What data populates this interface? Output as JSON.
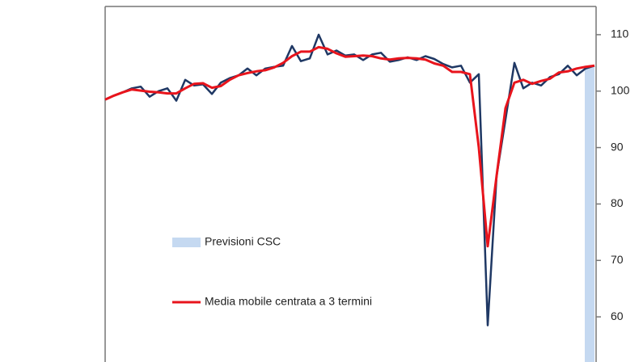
{
  "chart_data": {
    "type": "line",
    "categories": [
      null,
      null,
      null,
      null,
      null,
      null,
      null,
      null,
      null,
      null,
      null,
      null,
      null,
      null,
      null,
      null,
      null,
      null,
      null,
      null,
      null,
      null,
      null,
      null,
      null,
      null,
      null,
      null,
      null,
      null,
      null,
      null,
      null,
      null,
      null,
      null,
      null,
      null,
      null,
      null,
      null,
      null,
      null,
      null,
      null,
      null,
      null,
      null,
      null,
      null,
      null,
      null,
      null,
      null,
      null,
      null
    ],
    "series": [
      {
        "color": "#c5d9f1",
        "kind": "bar",
        "name": "Previsioni CSC",
        "values": [
          null,
          null,
          null,
          null,
          null,
          null,
          null,
          null,
          null,
          null,
          null,
          null,
          null,
          null,
          null,
          null,
          null,
          null,
          null,
          null,
          null,
          null,
          null,
          null,
          null,
          null,
          null,
          null,
          null,
          null,
          null,
          null,
          null,
          null,
          null,
          null,
          null,
          null,
          null,
          null,
          null,
          null,
          null,
          null,
          null,
          null,
          null,
          null,
          null,
          null,
          null,
          null,
          null,
          null,
          null,
          104.5
        ]
      },
      {
        "color": "#1f3864",
        "kind": "line",
        "values": [
          98.5,
          99.2,
          99.8,
          100.5,
          100.8,
          99.0,
          100,
          100.5,
          98.3,
          102,
          101,
          101.2,
          99.5,
          101.5,
          102.3,
          102.8,
          104,
          102.8,
          104,
          104.3,
          104.5,
          108,
          105.3,
          105.8,
          110,
          106.5,
          107.2,
          106.3,
          106.5,
          105.5,
          106.5,
          106.8,
          105.2,
          105.5,
          106,
          105.5,
          106.2,
          105.7,
          104.8,
          104.2,
          104.5,
          101.5,
          103,
          58.5,
          85,
          95,
          105,
          100.5,
          101.5,
          101,
          102.5,
          103,
          104.5,
          102.8,
          104,
          104.5
        ]
      },
      {
        "color": "#e8141c",
        "kind": "line",
        "name": "Media mobile centrata a 3 termini",
        "values": [
          98.5,
          99.2,
          99.8,
          100.3,
          100.1,
          99.9,
          99.8,
          99.6,
          99.6,
          100.5,
          101.3,
          101.4,
          100.6,
          100.9,
          102,
          102.8,
          103.2,
          103.5,
          103.7,
          104.2,
          105,
          106.2,
          107,
          107,
          107.8,
          107.5,
          106.7,
          106.1,
          106.2,
          106.3,
          106.2,
          105.8,
          105.6,
          105.8,
          105.9,
          105.8,
          105.6,
          104.9,
          104.5,
          103.4,
          103.4,
          103,
          90,
          72.5,
          85,
          97,
          101.5,
          102,
          101.3,
          101.8,
          102.2,
          103.3,
          103.5,
          104,
          104.3,
          104.5
        ]
      }
    ],
    "ylim": [
      52,
      115
    ],
    "yticks": [
      60,
      70,
      80,
      90,
      100,
      110
    ]
  }
}
